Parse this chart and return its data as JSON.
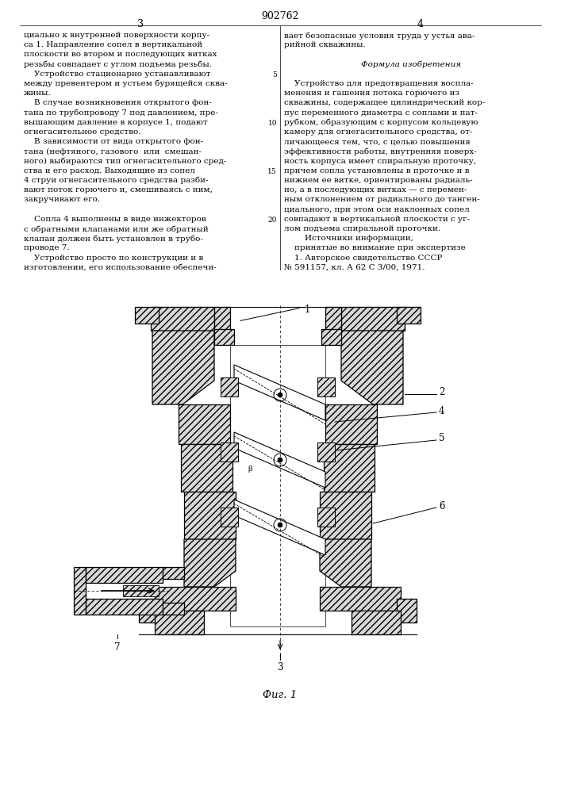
{
  "patent_number": "902762",
  "page_left": "3",
  "page_right": "4",
  "background_color": "#ffffff",
  "text_color": "#000000",
  "left_column_text": [
    "циально к внутренней поверхности корпу-",
    "са 1. Направление сопел в вертикальной",
    "плоскости во втором и последующих витках",
    "резьбы совпадает с углом подъема резьбы.",
    "    Устройство стационарно устанавливают",
    "между превентером и устьем бурящейся сква-",
    "жины.",
    "    В случае возникновения открытого фон-",
    "тана по трубопроводу 7 под давлением, пре-",
    "вышающим давление в корпусе 1, подают",
    "огнегасительное средство.",
    "    В зависимости от вида открытого фон-",
    "тана (нефтяного, газового  или  смешан-",
    "ного) выбираются тип огнегасительного сред-",
    "ства и его расход. Выходящие из сопел",
    "4 струи огнегасительного средства разби-",
    "вают поток горючего и, смешиваясь с ним,",
    "закручивают его.",
    "",
    "    Сопла 4 выполнены в виде инжекторов",
    "с обратными клапанами или же обратный",
    "клапан должен быть установлен в трубо-",
    "проводе 7.",
    "    Устройство просто по конструкции и в",
    "изготовлении, его использование обеспечи-"
  ],
  "right_column_text": [
    "вает безопасные условия труда у устья ава-",
    "рийной скважины.",
    "",
    "Формула изобретения",
    "",
    "    Устройство для предотвращения воспла-",
    "менения и гашения потока горючего из",
    "скважины, содержащее цилиндрический кор-",
    "пус переменного диаметра с соплами и пат-",
    "рубком, образующим с корпусом кольцевую",
    "камеру для огнегасительного средства, от-",
    "личающееся тем, что, с целью повышения",
    "эффективности работы, внутренняя поверх-",
    "ность корпуса имеет спиральную проточку,",
    "причем сопла установлены в проточке и в",
    "нижнем ее витке, ориентированы радиаль-",
    "но, а в последующих витках — с перемен-",
    "ным отклонением от радиального до танген-",
    "циального, при этом оси наклонных сопел",
    "совпадают в вертикальной плоскости с уг-",
    "лом подъема спиральной проточки.",
    "        Источники информации,",
    "    принятые во внимание при экспертизе",
    "    1. Авторское свидетельство СССР",
    "№ 591157, кл. А 62 С 3/00, 1971."
  ],
  "fig_label": "Фиг. 1",
  "figsize": [
    7.07,
    10.0
  ],
  "dpi": 100
}
